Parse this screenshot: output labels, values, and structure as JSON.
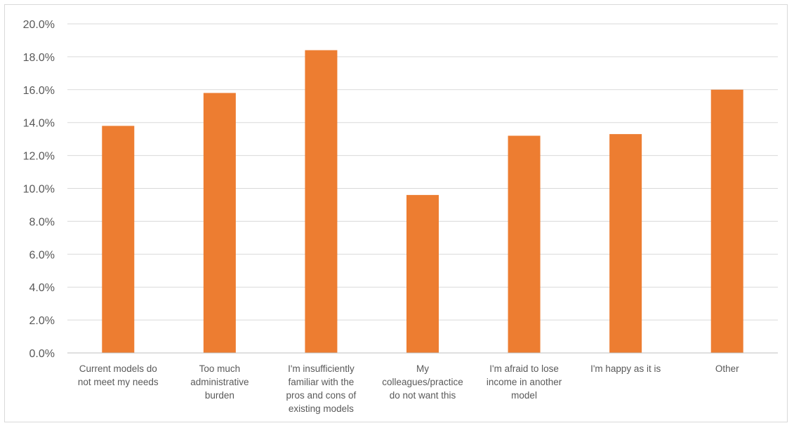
{
  "chart_data": {
    "type": "bar",
    "categories": [
      [
        "Current models do",
        "not meet my needs"
      ],
      [
        "Too much",
        "administrative",
        "burden"
      ],
      [
        "I'm insufficiently",
        "familiar with the",
        "pros and cons of",
        "existing models"
      ],
      [
        "My",
        "colleagues/practice",
        "do not want this"
      ],
      [
        "I'm afraid to lose",
        "income in another",
        "model"
      ],
      [
        "I'm happy as it is"
      ],
      [
        "Other"
      ]
    ],
    "values": [
      13.8,
      15.8,
      18.4,
      9.6,
      13.2,
      13.3,
      16.0
    ],
    "ylim": [
      0,
      20
    ],
    "ytick_labels": [
      "0.0%",
      "2.0%",
      "4.0%",
      "6.0%",
      "8.0%",
      "10.0%",
      "12.0%",
      "14.0%",
      "16.0%",
      "18.0%",
      "20.0%"
    ],
    "grid": true,
    "bar_color": "#ED7D31",
    "title": "",
    "xlabel": "",
    "ylabel": ""
  }
}
